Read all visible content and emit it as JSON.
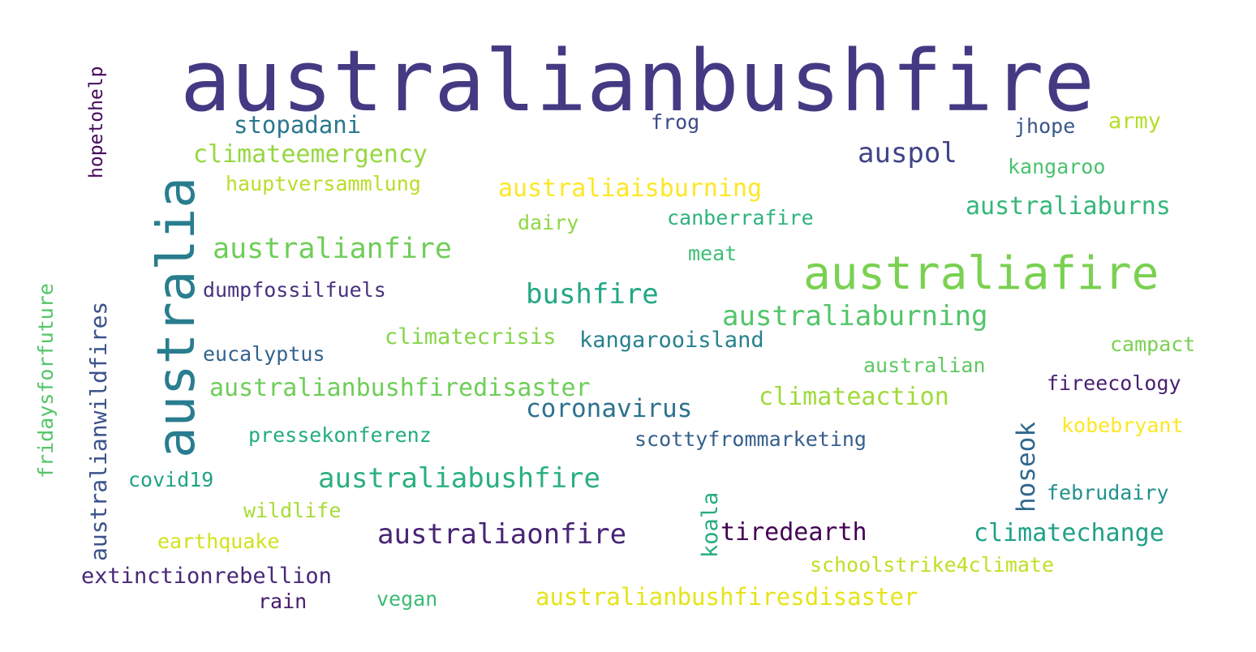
{
  "words": [
    {
      "text": "australianbushfire",
      "color": "#443a83"
    },
    {
      "text": "australia",
      "color": "#287d8e"
    },
    {
      "text": "australiafire",
      "color": "#7ad151"
    },
    {
      "text": "australianfire",
      "color": "#6ece58"
    },
    {
      "text": "australiaburning",
      "color": "#52c569"
    },
    {
      "text": "bushfire",
      "color": "#22a884"
    },
    {
      "text": "australiabushfire",
      "color": "#2ab07f"
    },
    {
      "text": "australiaonfire",
      "color": "#482475"
    },
    {
      "text": "auspol",
      "color": "#414487"
    },
    {
      "text": "stopadani",
      "color": "#2a788e"
    },
    {
      "text": "climateemergency",
      "color": "#95d840"
    },
    {
      "text": "australiaisburning",
      "color": "#fde725"
    },
    {
      "text": "australianwildfires",
      "color": "#3b528b"
    },
    {
      "text": "hoseok",
      "color": "#31688e"
    },
    {
      "text": "coronavirus",
      "color": "#2c728e"
    },
    {
      "text": "australianbushfiredisaster",
      "color": "#6ece58"
    },
    {
      "text": "climateaction",
      "color": "#a0da39"
    },
    {
      "text": "australiaburns",
      "color": "#35b779"
    },
    {
      "text": "climatechange",
      "color": "#1fa187"
    },
    {
      "text": "tiredearth",
      "color": "#440154"
    },
    {
      "text": "extinctionrebellion",
      "color": "#482878"
    },
    {
      "text": "australianbushfiresdisaster",
      "color": "#e5e419"
    },
    {
      "text": "koala",
      "color": "#27ad81"
    },
    {
      "text": "frog",
      "color": "#3e4a89"
    },
    {
      "text": "jhope",
      "color": "#38588c"
    },
    {
      "text": "army",
      "color": "#b5de2b"
    },
    {
      "text": "kangaroo",
      "color": "#4ac16d"
    },
    {
      "text": "hauptversammlung",
      "color": "#b8de29"
    },
    {
      "text": "canberrafire",
      "color": "#2eb37c"
    },
    {
      "text": "dairy",
      "color": "#8fd744"
    },
    {
      "text": "meat",
      "color": "#3dbc74"
    },
    {
      "text": "dumpfossilfuels",
      "color": "#46327e"
    },
    {
      "text": "climatecrisis",
      "color": "#86d549"
    },
    {
      "text": "kangarooisland",
      "color": "#26828e"
    },
    {
      "text": "eucalyptus",
      "color": "#33638d"
    },
    {
      "text": "campact",
      "color": "#7ad151"
    },
    {
      "text": "australian",
      "color": "#5ec962"
    },
    {
      "text": "fireecology",
      "color": "#481f70"
    },
    {
      "text": "kobebryant",
      "color": "#fde725"
    },
    {
      "text": "pressekonferenz",
      "color": "#25ac82"
    },
    {
      "text": "scottyfrommarketing",
      "color": "#355f8d"
    },
    {
      "text": "covid19",
      "color": "#20a386"
    },
    {
      "text": "februdairy",
      "color": "#21918c"
    },
    {
      "text": "wildlife",
      "color": "#a8db34"
    },
    {
      "text": "earthquake",
      "color": "#d2e21b"
    },
    {
      "text": "schoolstrike4climate",
      "color": "#c0df25"
    },
    {
      "text": "rain",
      "color": "#481b6d"
    },
    {
      "text": "vegan",
      "color": "#3bbb75"
    },
    {
      "text": "hopetohelp",
      "color": "#46085c"
    },
    {
      "text": "fridaysforfuture",
      "color": "#54c568"
    }
  ]
}
